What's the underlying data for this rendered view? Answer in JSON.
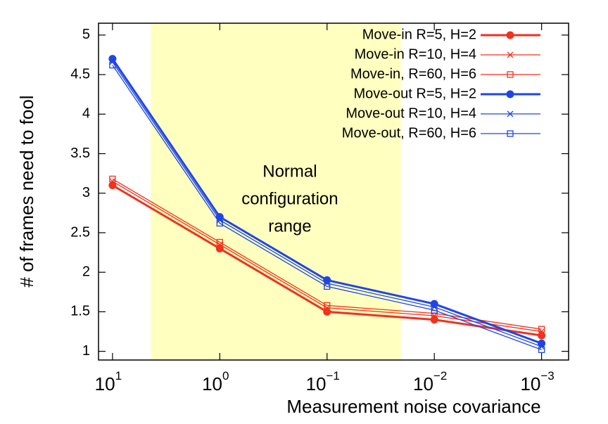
{
  "chart_data": {
    "type": "line",
    "xlabel": "Measurement noise covariance",
    "ylabel": "# of frames need to fool",
    "x": [
      10,
      1,
      0.1,
      0.01,
      0.001
    ],
    "xscale": "log",
    "xlim": [
      13.5,
      0.00056
    ],
    "xticks": [
      {
        "value": 10,
        "label": "10",
        "exponent": "1"
      },
      {
        "value": 1,
        "label": "10",
        "exponent": "0"
      },
      {
        "value": 0.1,
        "label": "10",
        "exponent": "−1"
      },
      {
        "value": 0.01,
        "label": "10",
        "exponent": "−2"
      },
      {
        "value": 0.001,
        "label": "10",
        "exponent": "−3"
      }
    ],
    "ylim": [
      0.89,
      5.15
    ],
    "yticks": [
      1,
      1.5,
      2,
      2.5,
      3,
      3.5,
      4,
      4.5,
      5
    ],
    "grid": false,
    "legend": "top-right",
    "shaded_region": {
      "x_range": [
        4.4,
        0.0205
      ],
      "color": "#ffffc0",
      "label": [
        "Normal",
        "configuration",
        "range"
      ],
      "label_color": "#1a237e"
    },
    "series": [
      {
        "name": "Move-in R=5, H=2",
        "color": "#f0321e",
        "marker": "circle",
        "line_width": 3,
        "values": [
          3.1,
          2.3,
          1.5,
          1.4,
          1.2
        ]
      },
      {
        "name": "Move-in R=10, H=4",
        "color": "#f0321e",
        "marker": "x",
        "line_width": 1.3,
        "values": [
          3.15,
          2.35,
          1.55,
          1.45,
          1.25
        ]
      },
      {
        "name": "Move-in, R=60, H=6",
        "color": "#f0321e",
        "marker": "square",
        "line_width": 1.3,
        "values": [
          3.18,
          2.38,
          1.58,
          1.48,
          1.28
        ]
      },
      {
        "name": "Move-out R=5, H=2",
        "color": "#1e46e6",
        "marker": "circle",
        "line_width": 3,
        "values": [
          4.7,
          2.7,
          1.9,
          1.6,
          1.1
        ]
      },
      {
        "name": "Move-out R=10, H=4",
        "color": "#1e46e6",
        "marker": "x",
        "line_width": 1.3,
        "values": [
          4.66,
          2.66,
          1.86,
          1.56,
          1.06
        ]
      },
      {
        "name": "Move-out, R=60, H=6",
        "color": "#1e46e6",
        "marker": "square",
        "line_width": 1.3,
        "values": [
          4.62,
          2.62,
          1.82,
          1.52,
          1.02
        ]
      }
    ]
  }
}
